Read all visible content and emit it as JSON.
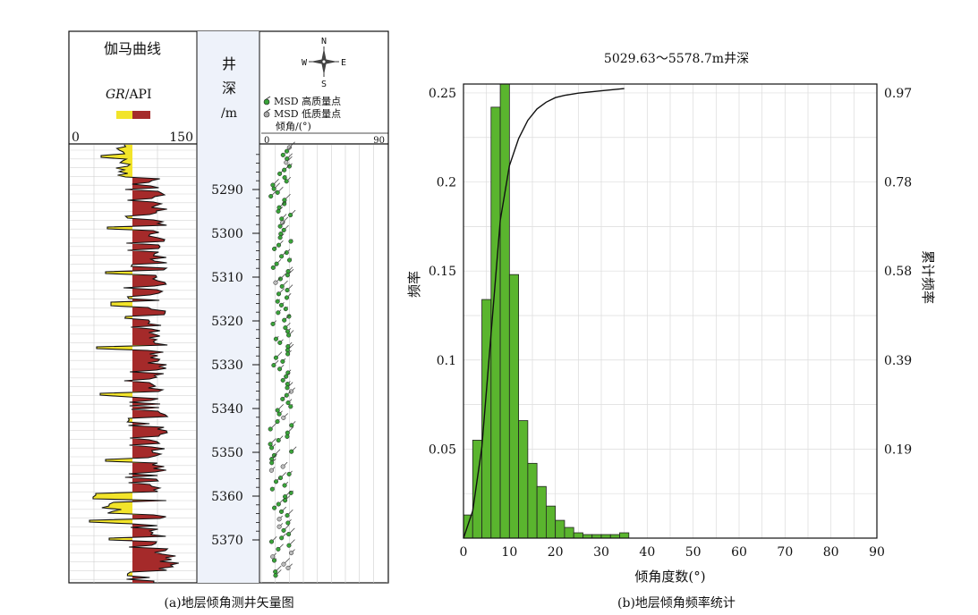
{
  "left_panel": {
    "gamma_title": "伽马曲线",
    "gr_label_italic": "GR",
    "gr_label_unit": "/API",
    "gr_scale_min": "0",
    "gr_scale_max": "150",
    "gr_sand_color": "#f2e42a",
    "gr_shale_color": "#a52a2a",
    "depth_char_1": "井",
    "depth_char_2": "深",
    "depth_unit": "/m",
    "compass_n": "N",
    "compass_s": "S",
    "compass_e": "E",
    "compass_w": "W",
    "legend_high": "MSD 高质量点",
    "legend_low": "MSD 低质量点",
    "dip_axis_title": "倾角/(°)",
    "dip_axis_min": "0",
    "dip_axis_max": "90",
    "depth_labels": [
      "5290",
      "5300",
      "5310",
      "5320",
      "5330",
      "5340",
      "5350",
      "5360",
      "5370"
    ],
    "caption": "(a)地层倾角测井矢量图",
    "point_color": "#3aa33a"
  },
  "chart_data": {
    "type": "bar",
    "title": "5029.63～5578.7m井深",
    "xlabel": "倾角度数(°)",
    "ylabel": "频率",
    "y2label": "累计频率",
    "xlim": [
      0,
      90
    ],
    "ylim": [
      0,
      0.255
    ],
    "x_ticks": [
      "0",
      "10",
      "20",
      "30",
      "40",
      "50",
      "60",
      "70",
      "80",
      "90"
    ],
    "y_ticks": [
      "0.05",
      "0.1",
      "0.15",
      "0.2",
      "0.25"
    ],
    "y2_ticks": [
      "0.19",
      "0.39",
      "0.58",
      "0.78",
      "0.97"
    ],
    "bin_width": 2,
    "bins_start": [
      0,
      2,
      4,
      6,
      8,
      10,
      12,
      14,
      16,
      18,
      20,
      22,
      24,
      26,
      28,
      30,
      32,
      34
    ],
    "frequency": [
      0.013,
      0.055,
      0.134,
      0.242,
      0.257,
      0.148,
      0.066,
      0.042,
      0.029,
      0.018,
      0.01,
      0.006,
      0.003,
      0.002,
      0.002,
      0.002,
      0.002,
      0.003
    ],
    "cumulative_series": {
      "x": [
        0,
        2,
        4,
        6,
        8,
        10,
        12,
        14,
        16,
        18,
        20,
        22,
        25,
        30,
        35
      ],
      "y": [
        0.0,
        0.06,
        0.2,
        0.45,
        0.7,
        0.82,
        0.88,
        0.92,
        0.945,
        0.96,
        0.97,
        0.975,
        0.98,
        0.985,
        0.99
      ]
    },
    "bar_color": "#5ab52e",
    "grid": true,
    "caption": "(b)地层倾角频率统计"
  }
}
